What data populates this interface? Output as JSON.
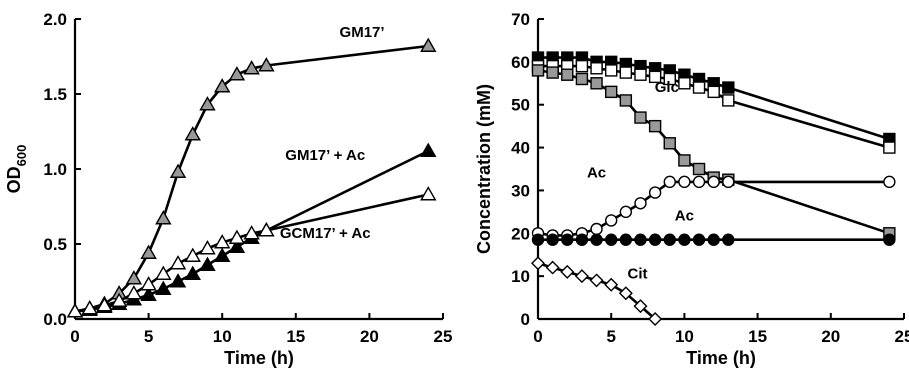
{
  "chart_data": [
    {
      "type": "line",
      "xlabel": "Time (h)",
      "ylabel": "OD",
      "ylabel_sub": "600",
      "xlim": [
        0,
        25
      ],
      "ylim": [
        0,
        2.0
      ],
      "xticks": [
        "0",
        "5",
        "10",
        "15",
        "20",
        "25"
      ],
      "yticks": [
        "0.0",
        "0.5",
        "1.0",
        "1.5",
        "2.0"
      ],
      "xtick_values": [
        0,
        5,
        10,
        15,
        20,
        25
      ],
      "ytick_values": [
        0,
        0.5,
        1.0,
        1.5,
        2.0
      ],
      "grid": false,
      "series": [
        {
          "name": "GM17’",
          "marker": "triangle",
          "fill": "#999999",
          "x": [
            0,
            1,
            2,
            3,
            4,
            5,
            6,
            7,
            8,
            9,
            10,
            11,
            12,
            13,
            24
          ],
          "y": [
            0.05,
            0.07,
            0.1,
            0.17,
            0.27,
            0.44,
            0.67,
            0.98,
            1.23,
            1.43,
            1.55,
            1.63,
            1.67,
            1.69,
            1.82
          ]
        },
        {
          "name": "GM17’ + Ac",
          "marker": "triangle",
          "fill": "#000000",
          "x": [
            0,
            1,
            2,
            3,
            4,
            5,
            6,
            7,
            8,
            9,
            10,
            11,
            12,
            13,
            24
          ],
          "y": [
            0.05,
            0.06,
            0.08,
            0.1,
            0.13,
            0.16,
            0.2,
            0.25,
            0.3,
            0.36,
            0.42,
            0.48,
            0.54,
            0.59,
            1.12
          ]
        },
        {
          "name": "GCM17’ + Ac",
          "marker": "triangle",
          "fill": "#ffffff",
          "x": [
            0,
            1,
            2,
            3,
            4,
            5,
            6,
            7,
            8,
            9,
            10,
            11,
            12,
            13,
            24
          ],
          "y": [
            0.05,
            0.07,
            0.09,
            0.12,
            0.17,
            0.23,
            0.3,
            0.37,
            0.42,
            0.47,
            0.51,
            0.54,
            0.57,
            0.59,
            0.83
          ]
        }
      ],
      "annotations": [
        {
          "text": "GM17’",
          "x": 19.5,
          "y": 1.88
        },
        {
          "text": "GM17’ + Ac",
          "x": 17.0,
          "y": 1.06
        },
        {
          "text": "GCM17’ + Ac",
          "x": 17.0,
          "y": 0.54
        }
      ]
    },
    {
      "type": "line",
      "xlabel": "Time (h)",
      "ylabel": "Concentration (mM)",
      "xlim": [
        0,
        25
      ],
      "ylim": [
        0,
        70
      ],
      "xticks": [
        "0",
        "5",
        "10",
        "15",
        "20",
        "25"
      ],
      "yticks": [
        "0",
        "10",
        "20",
        "30",
        "40",
        "50",
        "60",
        "70"
      ],
      "xtick_values": [
        0,
        5,
        10,
        15,
        20,
        25
      ],
      "ytick_values": [
        0,
        10,
        20,
        30,
        40,
        50,
        60,
        70
      ],
      "grid": false,
      "series": [
        {
          "marker": "square",
          "fill": "#000000",
          "x": [
            0,
            1,
            2,
            3,
            4,
            5,
            6,
            7,
            8,
            9,
            10,
            11,
            12,
            13,
            24
          ],
          "y": [
            61,
            61,
            61,
            61,
            60,
            60,
            59.5,
            59,
            58.5,
            58,
            57,
            56,
            55,
            54,
            42
          ]
        },
        {
          "marker": "square",
          "fill": "#ffffff",
          "x": [
            0,
            1,
            2,
            3,
            4,
            5,
            6,
            7,
            8,
            9,
            10,
            11,
            12,
            13,
            24
          ],
          "y": [
            59,
            59,
            59,
            59,
            58.5,
            58,
            57.5,
            57,
            56.5,
            56,
            55,
            54,
            53,
            51,
            40
          ]
        },
        {
          "marker": "square",
          "fill": "#999999",
          "x": [
            0,
            1,
            2,
            3,
            4,
            5,
            6,
            7,
            8,
            9,
            10,
            11,
            12,
            13,
            24
          ],
          "y": [
            58,
            57.5,
            57,
            56,
            55,
            53,
            51,
            47,
            45,
            41,
            37,
            35,
            33,
            32.5,
            20
          ]
        },
        {
          "marker": "circle",
          "fill": "#ffffff",
          "x": [
            0,
            1,
            2,
            3,
            4,
            5,
            6,
            7,
            8,
            9,
            10,
            11,
            12,
            13,
            24
          ],
          "y": [
            20,
            19.5,
            19.5,
            20,
            21,
            23,
            25,
            27,
            29.5,
            32,
            32,
            32,
            32,
            32,
            32
          ]
        },
        {
          "marker": "circle",
          "fill": "#000000",
          "x": [
            0,
            1,
            2,
            3,
            4,
            5,
            6,
            7,
            8,
            9,
            10,
            11,
            12,
            13,
            24
          ],
          "y": [
            18.5,
            18.5,
            18.5,
            18.5,
            18.5,
            18.5,
            18.5,
            18.5,
            18.5,
            18.5,
            18.5,
            18.5,
            18.5,
            18.5,
            18.5
          ]
        },
        {
          "marker": "diamond",
          "fill": "#ffffff",
          "x": [
            0,
            1,
            2,
            3,
            4,
            5,
            6,
            7,
            8
          ],
          "y": [
            13,
            12,
            11,
            10,
            9,
            8,
            6,
            3,
            0
          ]
        }
      ],
      "annotations": [
        {
          "text": "Glc",
          "x": 8.8,
          "y": 53
        },
        {
          "text": "Ac",
          "x": 4.0,
          "y": 33
        },
        {
          "text": "Ac",
          "x": 10.0,
          "y": 23
        },
        {
          "text": "Cit",
          "x": 6.8,
          "y": 9.5
        }
      ]
    }
  ]
}
